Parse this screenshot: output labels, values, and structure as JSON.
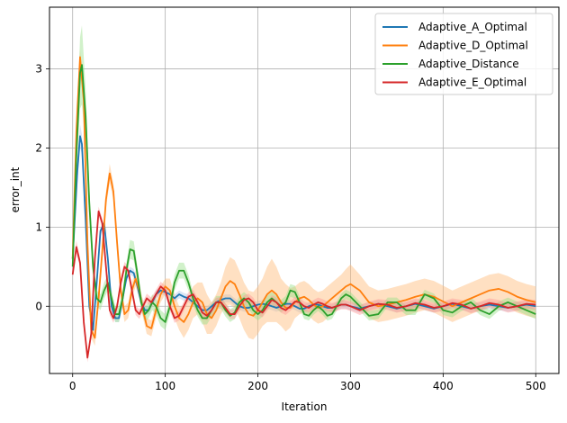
{
  "chart_data": {
    "type": "line",
    "title": "",
    "xlabel": "Iteration",
    "ylabel": "error_int",
    "xlim": [
      -25,
      525
    ],
    "ylim": [
      -0.85,
      3.78
    ],
    "xticks": [
      0,
      100,
      200,
      300,
      400,
      500
    ],
    "yticks": [
      0,
      1,
      2,
      3
    ],
    "grid": true,
    "legend_position": "upper-right",
    "series": [
      {
        "name": "Adaptive_A_Optimal",
        "color": "#1f77b4",
        "band_color": "#aec7e8",
        "x": [
          0,
          5,
          8,
          10,
          14,
          18,
          22,
          26,
          30,
          34,
          38,
          42,
          46,
          50,
          54,
          58,
          62,
          66,
          70,
          74,
          78,
          82,
          86,
          90,
          95,
          100,
          105,
          110,
          115,
          120,
          125,
          130,
          135,
          140,
          145,
          150,
          155,
          160,
          165,
          170,
          175,
          180,
          185,
          190,
          195,
          200,
          205,
          210,
          215,
          220,
          225,
          230,
          235,
          240,
          245,
          250,
          255,
          260,
          265,
          270,
          275,
          280,
          285,
          290,
          295,
          300,
          310,
          320,
          330,
          340,
          350,
          360,
          370,
          380,
          390,
          400,
          410,
          420,
          430,
          440,
          450,
          460,
          470,
          480,
          490,
          500
        ],
        "y": [
          0.6,
          1.7,
          2.15,
          2.05,
          1.1,
          0.0,
          -0.3,
          0.3,
          0.95,
          1.05,
          0.6,
          0.0,
          -0.15,
          -0.15,
          0.1,
          0.35,
          0.45,
          0.42,
          0.25,
          0.05,
          -0.05,
          -0.05,
          0.05,
          0.15,
          0.2,
          0.18,
          0.15,
          0.1,
          0.15,
          0.12,
          0.1,
          0.05,
          0.0,
          -0.05,
          -0.05,
          0.0,
          0.05,
          0.08,
          0.1,
          0.1,
          0.05,
          0.0,
          -0.02,
          -0.02,
          0.0,
          0.02,
          0.03,
          0.02,
          0.0,
          -0.02,
          0.0,
          0.03,
          0.03,
          0.0,
          -0.03,
          -0.03,
          0.0,
          0.02,
          0.02,
          0.0,
          -0.02,
          -0.02,
          0.0,
          0.02,
          0.02,
          0.0,
          -0.03,
          0.0,
          0.03,
          0.0,
          -0.03,
          0.0,
          0.03,
          0.0,
          -0.03,
          0.0,
          0.03,
          0.0,
          -0.03,
          0.0,
          0.02,
          0.0,
          -0.02,
          0.0,
          0.02,
          0.0
        ],
        "band": [
          0.05,
          0.15,
          0.15,
          0.12,
          0.1,
          0.05,
          0.05,
          0.05,
          0.05,
          0.05,
          0.05,
          0.05,
          0.05,
          0.05,
          0.05,
          0.05,
          0.05,
          0.05,
          0.05,
          0.05,
          0.05,
          0.05,
          0.05,
          0.05,
          0.05,
          0.05,
          0.05,
          0.05,
          0.05,
          0.05,
          0.05,
          0.05,
          0.05,
          0.05,
          0.05,
          0.05,
          0.05,
          0.05,
          0.05,
          0.05,
          0.05,
          0.05,
          0.05,
          0.05,
          0.05,
          0.05,
          0.05,
          0.05,
          0.05,
          0.05,
          0.05,
          0.05,
          0.05,
          0.05,
          0.05,
          0.05,
          0.05,
          0.05,
          0.05,
          0.05,
          0.05,
          0.05,
          0.05,
          0.05,
          0.05,
          0.05,
          0.05,
          0.05,
          0.05,
          0.05,
          0.05,
          0.05,
          0.05,
          0.05,
          0.05,
          0.05,
          0.05,
          0.05,
          0.05,
          0.05,
          0.05,
          0.05,
          0.05,
          0.05,
          0.05,
          0.05
        ]
      },
      {
        "name": "Adaptive_D_Optimal",
        "color": "#ff7f0e",
        "band_color": "#ffbb78",
        "x": [
          0,
          4,
          8,
          12,
          16,
          20,
          24,
          28,
          32,
          36,
          40,
          44,
          48,
          52,
          56,
          60,
          64,
          68,
          72,
          76,
          80,
          85,
          90,
          95,
          100,
          105,
          110,
          115,
          120,
          125,
          130,
          135,
          140,
          145,
          150,
          155,
          160,
          165,
          170,
          175,
          180,
          185,
          190,
          195,
          200,
          205,
          210,
          215,
          220,
          225,
          230,
          235,
          240,
          245,
          250,
          255,
          260,
          265,
          270,
          275,
          280,
          285,
          290,
          295,
          300,
          310,
          320,
          330,
          340,
          350,
          360,
          370,
          380,
          390,
          400,
          410,
          420,
          430,
          440,
          450,
          460,
          470,
          480,
          490,
          500
        ],
        "y": [
          0.6,
          2.2,
          3.15,
          2.6,
          0.8,
          -0.3,
          -0.4,
          0.1,
          0.7,
          1.35,
          1.68,
          1.45,
          0.8,
          0.2,
          -0.1,
          -0.05,
          0.2,
          0.35,
          0.2,
          -0.05,
          -0.25,
          -0.28,
          -0.05,
          0.15,
          0.25,
          0.2,
          0.0,
          -0.15,
          -0.2,
          -0.1,
          0.05,
          0.1,
          0.05,
          -0.1,
          -0.15,
          -0.05,
          0.1,
          0.25,
          0.32,
          0.28,
          0.15,
          0.0,
          -0.1,
          -0.12,
          -0.05,
          0.05,
          0.15,
          0.2,
          0.15,
          0.05,
          -0.02,
          -0.02,
          0.05,
          0.1,
          0.12,
          0.08,
          0.02,
          -0.02,
          0.0,
          0.05,
          0.1,
          0.15,
          0.2,
          0.25,
          0.28,
          0.2,
          0.05,
          0.0,
          0.02,
          0.05,
          0.08,
          0.12,
          0.15,
          0.12,
          0.06,
          0.0,
          0.05,
          0.1,
          0.15,
          0.2,
          0.22,
          0.18,
          0.12,
          0.08,
          0.05
        ],
        "band": [
          0.05,
          0.3,
          0.1,
          0.1,
          0.1,
          0.1,
          0.1,
          0.1,
          0.1,
          0.1,
          0.12,
          0.1,
          0.1,
          0.1,
          0.1,
          0.1,
          0.1,
          0.1,
          0.1,
          0.1,
          0.1,
          0.1,
          0.1,
          0.1,
          0.1,
          0.15,
          0.15,
          0.15,
          0.2,
          0.2,
          0.2,
          0.2,
          0.25,
          0.25,
          0.2,
          0.2,
          0.2,
          0.25,
          0.3,
          0.3,
          0.3,
          0.3,
          0.3,
          0.3,
          0.3,
          0.3,
          0.35,
          0.4,
          0.35,
          0.3,
          0.3,
          0.25,
          0.2,
          0.2,
          0.2,
          0.2,
          0.2,
          0.2,
          0.2,
          0.2,
          0.2,
          0.2,
          0.2,
          0.22,
          0.25,
          0.2,
          0.2,
          0.2,
          0.2,
          0.2,
          0.2,
          0.2,
          0.2,
          0.2,
          0.2,
          0.2,
          0.2,
          0.2,
          0.2,
          0.2,
          0.2,
          0.2,
          0.2,
          0.2,
          0.2
        ]
      },
      {
        "name": "Adaptive_Distance",
        "color": "#2ca02c",
        "band_color": "#98df8a",
        "x": [
          0,
          4,
          8,
          10,
          14,
          18,
          22,
          26,
          30,
          34,
          38,
          42,
          46,
          50,
          54,
          58,
          62,
          66,
          70,
          74,
          78,
          82,
          86,
          90,
          95,
          100,
          105,
          110,
          115,
          120,
          125,
          130,
          135,
          140,
          145,
          150,
          155,
          160,
          165,
          170,
          175,
          180,
          185,
          190,
          195,
          200,
          205,
          210,
          215,
          220,
          225,
          230,
          235,
          240,
          245,
          250,
          255,
          260,
          265,
          270,
          275,
          280,
          285,
          290,
          295,
          300,
          310,
          320,
          330,
          340,
          350,
          360,
          370,
          380,
          390,
          400,
          410,
          420,
          430,
          440,
          450,
          460,
          470,
          480,
          490,
          500
        ],
        "y": [
          0.5,
          1.9,
          2.95,
          3.05,
          2.4,
          1.3,
          0.5,
          0.1,
          0.05,
          0.2,
          0.3,
          0.1,
          -0.1,
          -0.1,
          0.1,
          0.45,
          0.72,
          0.7,
          0.4,
          0.05,
          -0.1,
          -0.05,
          0.05,
          0.0,
          -0.15,
          -0.2,
          0.0,
          0.3,
          0.45,
          0.45,
          0.3,
          0.1,
          -0.05,
          -0.15,
          -0.15,
          -0.05,
          0.05,
          0.05,
          -0.05,
          -0.12,
          -0.08,
          0.05,
          0.1,
          0.05,
          -0.05,
          -0.1,
          -0.05,
          0.05,
          0.1,
          0.05,
          0.0,
          0.05,
          0.2,
          0.18,
          0.05,
          -0.1,
          -0.12,
          -0.05,
          0.0,
          -0.05,
          -0.12,
          -0.1,
          0.0,
          0.1,
          0.15,
          0.12,
          0.0,
          -0.12,
          -0.1,
          0.05,
          0.05,
          -0.05,
          -0.05,
          0.15,
          0.1,
          -0.05,
          -0.08,
          0.0,
          0.05,
          -0.05,
          -0.1,
          0.0,
          0.05,
          0.0,
          -0.05,
          -0.1
        ],
        "band": [
          0.05,
          0.2,
          0.45,
          0.5,
          0.35,
          0.2,
          0.15,
          0.1,
          0.1,
          0.1,
          0.1,
          0.1,
          0.1,
          0.1,
          0.1,
          0.1,
          0.12,
          0.12,
          0.1,
          0.1,
          0.1,
          0.1,
          0.1,
          0.1,
          0.1,
          0.1,
          0.1,
          0.1,
          0.1,
          0.1,
          0.1,
          0.08,
          0.08,
          0.08,
          0.08,
          0.08,
          0.08,
          0.08,
          0.08,
          0.08,
          0.08,
          0.08,
          0.08,
          0.08,
          0.08,
          0.08,
          0.08,
          0.08,
          0.08,
          0.08,
          0.08,
          0.08,
          0.08,
          0.08,
          0.08,
          0.06,
          0.06,
          0.06,
          0.06,
          0.06,
          0.06,
          0.06,
          0.06,
          0.06,
          0.06,
          0.06,
          0.06,
          0.06,
          0.06,
          0.06,
          0.06,
          0.06,
          0.06,
          0.06,
          0.06,
          0.06,
          0.06,
          0.06,
          0.06,
          0.06,
          0.06,
          0.06,
          0.06,
          0.06,
          0.06,
          0.06
        ]
      },
      {
        "name": "Adaptive_E_Optimal",
        "color": "#d62728",
        "band_color": "#ff9896",
        "x": [
          0,
          4,
          8,
          12,
          16,
          20,
          24,
          28,
          32,
          36,
          40,
          44,
          48,
          52,
          56,
          60,
          64,
          68,
          72,
          76,
          80,
          85,
          90,
          95,
          100,
          105,
          110,
          115,
          120,
          125,
          130,
          135,
          140,
          145,
          150,
          155,
          160,
          165,
          170,
          175,
          180,
          185,
          190,
          195,
          200,
          205,
          210,
          215,
          220,
          225,
          230,
          235,
          240,
          245,
          250,
          255,
          260,
          265,
          270,
          275,
          280,
          285,
          290,
          295,
          300,
          310,
          320,
          330,
          340,
          350,
          360,
          370,
          380,
          390,
          400,
          410,
          420,
          430,
          440,
          450,
          460,
          470,
          480,
          490,
          500
        ],
        "y": [
          0.4,
          0.75,
          0.55,
          -0.2,
          -0.65,
          -0.35,
          0.6,
          1.2,
          1.05,
          0.5,
          -0.05,
          -0.15,
          0.0,
          0.3,
          0.5,
          0.45,
          0.2,
          -0.05,
          -0.1,
          0.0,
          0.1,
          0.05,
          0.15,
          0.25,
          0.2,
          0.0,
          -0.15,
          -0.12,
          0.0,
          0.12,
          0.15,
          0.05,
          -0.08,
          -0.12,
          -0.05,
          0.05,
          0.05,
          -0.02,
          -0.1,
          -0.1,
          0.0,
          0.08,
          0.1,
          0.05,
          -0.05,
          -0.08,
          0.0,
          0.08,
          0.05,
          -0.02,
          -0.05,
          0.0,
          0.06,
          0.05,
          0.0,
          -0.02,
          0.02,
          0.05,
          0.03,
          0.0,
          -0.02,
          0.0,
          0.02,
          0.02,
          0.0,
          -0.05,
          0.0,
          0.03,
          0.02,
          -0.02,
          0.0,
          0.04,
          0.02,
          -0.02,
          0.0,
          0.04,
          0.02,
          -0.03,
          0.0,
          0.04,
          0.02,
          -0.02,
          0.0,
          0.03,
          0.02
        ],
        "band": [
          0.05,
          0.08,
          0.06,
          0.06,
          0.06,
          0.06,
          0.06,
          0.06,
          0.06,
          0.06,
          0.06,
          0.06,
          0.06,
          0.06,
          0.06,
          0.06,
          0.06,
          0.06,
          0.06,
          0.06,
          0.06,
          0.06,
          0.06,
          0.06,
          0.06,
          0.06,
          0.06,
          0.06,
          0.06,
          0.06,
          0.06,
          0.06,
          0.06,
          0.06,
          0.06,
          0.06,
          0.06,
          0.06,
          0.06,
          0.06,
          0.06,
          0.06,
          0.06,
          0.06,
          0.06,
          0.06,
          0.06,
          0.06,
          0.06,
          0.06,
          0.06,
          0.06,
          0.06,
          0.06,
          0.06,
          0.06,
          0.06,
          0.06,
          0.06,
          0.06,
          0.06,
          0.06,
          0.06,
          0.06,
          0.06,
          0.06,
          0.06,
          0.06,
          0.06,
          0.06,
          0.06,
          0.06,
          0.06,
          0.06,
          0.06,
          0.06,
          0.06,
          0.06,
          0.06,
          0.06,
          0.06,
          0.06,
          0.06,
          0.06,
          0.06
        ]
      }
    ]
  }
}
